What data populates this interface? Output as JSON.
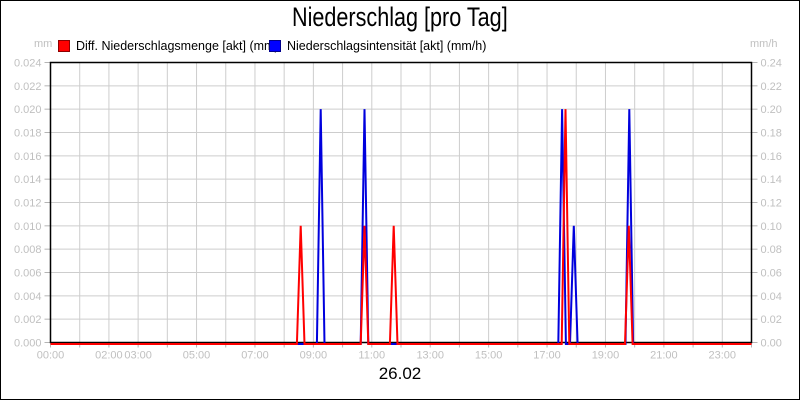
{
  "legend": {
    "items": [
      {
        "label": "Diff. Niederschlagsmenge [akt] (mm)",
        "color": "#ff0000"
      },
      {
        "label": "Niederschlagsintensität [akt] (mm/h)",
        "color": "#0000ff"
      }
    ]
  },
  "axes": {
    "left_unit": "mm",
    "right_unit": "mm/h",
    "left_tick_labels": [
      "0.024",
      "0.022",
      "0.020",
      "0.018",
      "0.016",
      "0.014",
      "0.012",
      "0.010",
      "0.008",
      "0.006",
      "0.004",
      "0.002",
      "0.000"
    ],
    "right_tick_labels": [
      "0.24",
      "0.22",
      "0.20",
      "0.18",
      "0.16",
      "0.14",
      "0.12",
      "0.10",
      "0.08",
      "0.06",
      "0.04",
      "0.02",
      "0.00"
    ],
    "x_tick_label_hours": [
      0,
      2,
      3,
      5,
      7,
      9,
      11,
      13,
      15,
      17,
      19,
      21,
      23
    ],
    "x_tick_labels": [
      "00:00",
      "02:00",
      "03:00",
      "05:00",
      "07:00",
      "09:00",
      "11:00",
      "13:00",
      "15:00",
      "17:00",
      "19:00",
      "21:00",
      "23:00"
    ],
    "date_label": "26.02"
  },
  "chart_data": {
    "type": "line",
    "title": "Niederschlag [pro Tag]",
    "grid": true,
    "legend_position": "top-left",
    "x_axis": {
      "range_hours": [
        0,
        24
      ],
      "tick_interval_hours": 1,
      "date": "26.02"
    },
    "left_axis": {
      "unit": "mm",
      "min": 0,
      "max": 0.024,
      "tick_step": 0.002
    },
    "right_axis": {
      "unit": "mm/h",
      "min": 0,
      "max": 0.24,
      "tick_step": 0.02
    },
    "series": [
      {
        "name": "Diff. Niederschlagsmenge [akt] (mm)",
        "axis": "left",
        "color": "#ff0000",
        "baseline_value": 0,
        "spikes": [
          {
            "time": "08:34",
            "value": 0.01
          },
          {
            "time": "10:45",
            "value": 0.01
          },
          {
            "time": "11:45",
            "value": 0.01
          },
          {
            "time": "17:38",
            "value": 0.02
          },
          {
            "time": "19:48",
            "value": 0.01
          }
        ]
      },
      {
        "name": "Niederschlagsintensität [akt] (mm/h)",
        "axis": "right",
        "color": "#0000dd",
        "baseline_value": 0,
        "spikes": [
          {
            "time": "09:15",
            "value": 0.2
          },
          {
            "time": "10:45",
            "value": 0.2
          },
          {
            "time": "17:31",
            "value": 0.2
          },
          {
            "time": "17:55",
            "value": 0.1
          },
          {
            "time": "19:49",
            "value": 0.2
          }
        ]
      }
    ]
  }
}
